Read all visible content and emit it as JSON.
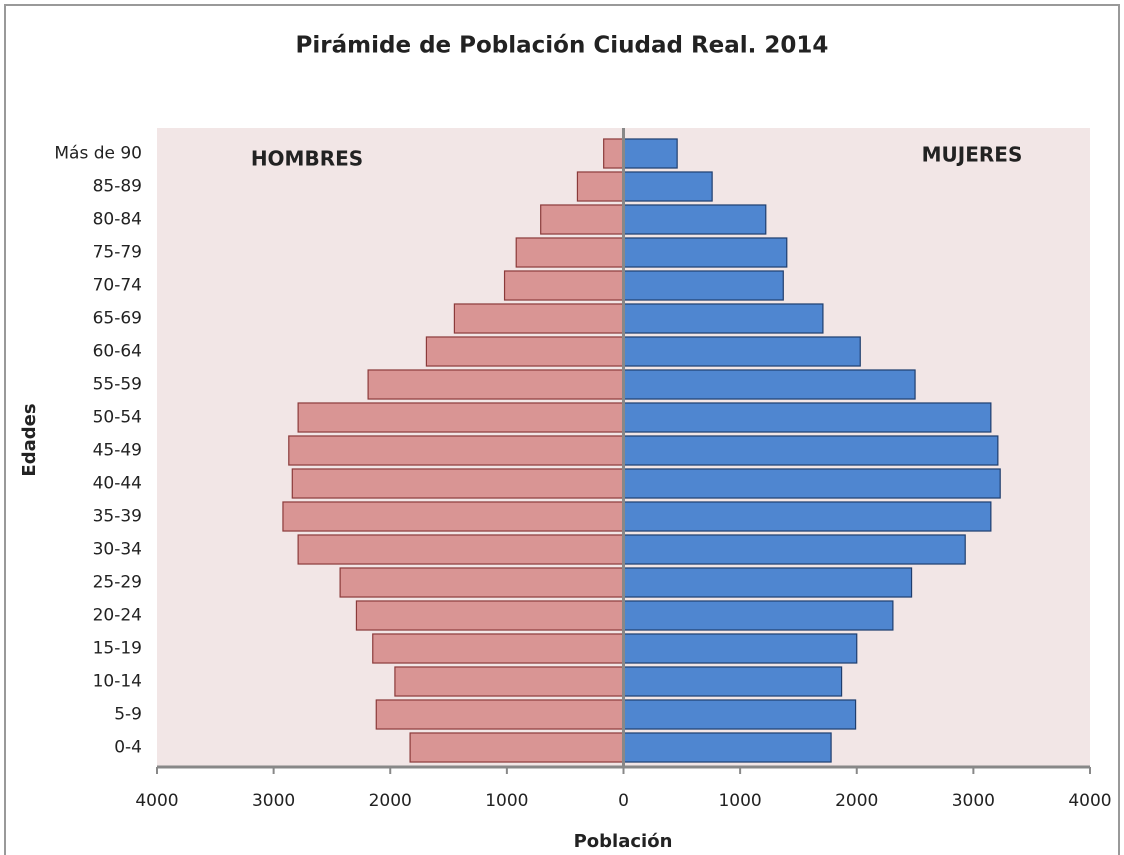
{
  "chart_data": {
    "type": "pyramid",
    "title": "Pirámide de Población Ciudad Real. 2014",
    "y_label": "Edades",
    "x_label": "Población",
    "categories": [
      "Más de 90",
      "85-89",
      "80-84",
      "75-79",
      "70-74",
      "65-69",
      "60-64",
      "55-59",
      "50-54",
      "45-49",
      "40-44",
      "35-39",
      "30-34",
      "25-29",
      "20-24",
      "15-19",
      "10-14",
      "5-9",
      "0-4"
    ],
    "series": [
      {
        "name": "HOMBRES",
        "color": "#d99594",
        "values": [
          -170,
          -395,
          -710,
          -920,
          -1020,
          -1450,
          -1690,
          -2190,
          -2790,
          -2870,
          -2840,
          -2920,
          -2790,
          -2430,
          -2290,
          -2150,
          -1960,
          -2120,
          -1830
        ]
      },
      {
        "name": "MUJERES",
        "color": "#4f86d0",
        "values": [
          460,
          760,
          1220,
          1400,
          1370,
          1710,
          2030,
          2500,
          3150,
          3210,
          3230,
          3150,
          2930,
          2470,
          2310,
          2000,
          1870,
          1990,
          1780
        ]
      }
    ],
    "xlim": [
      -4000,
      4000
    ],
    "xticks": [
      {
        "value": -4000,
        "label": "4000"
      },
      {
        "value": -3000,
        "label": "3000"
      },
      {
        "value": -2000,
        "label": "2000"
      },
      {
        "value": -1000,
        "label": "1000"
      },
      0,
      1000,
      2000,
      3000,
      4000
    ]
  }
}
